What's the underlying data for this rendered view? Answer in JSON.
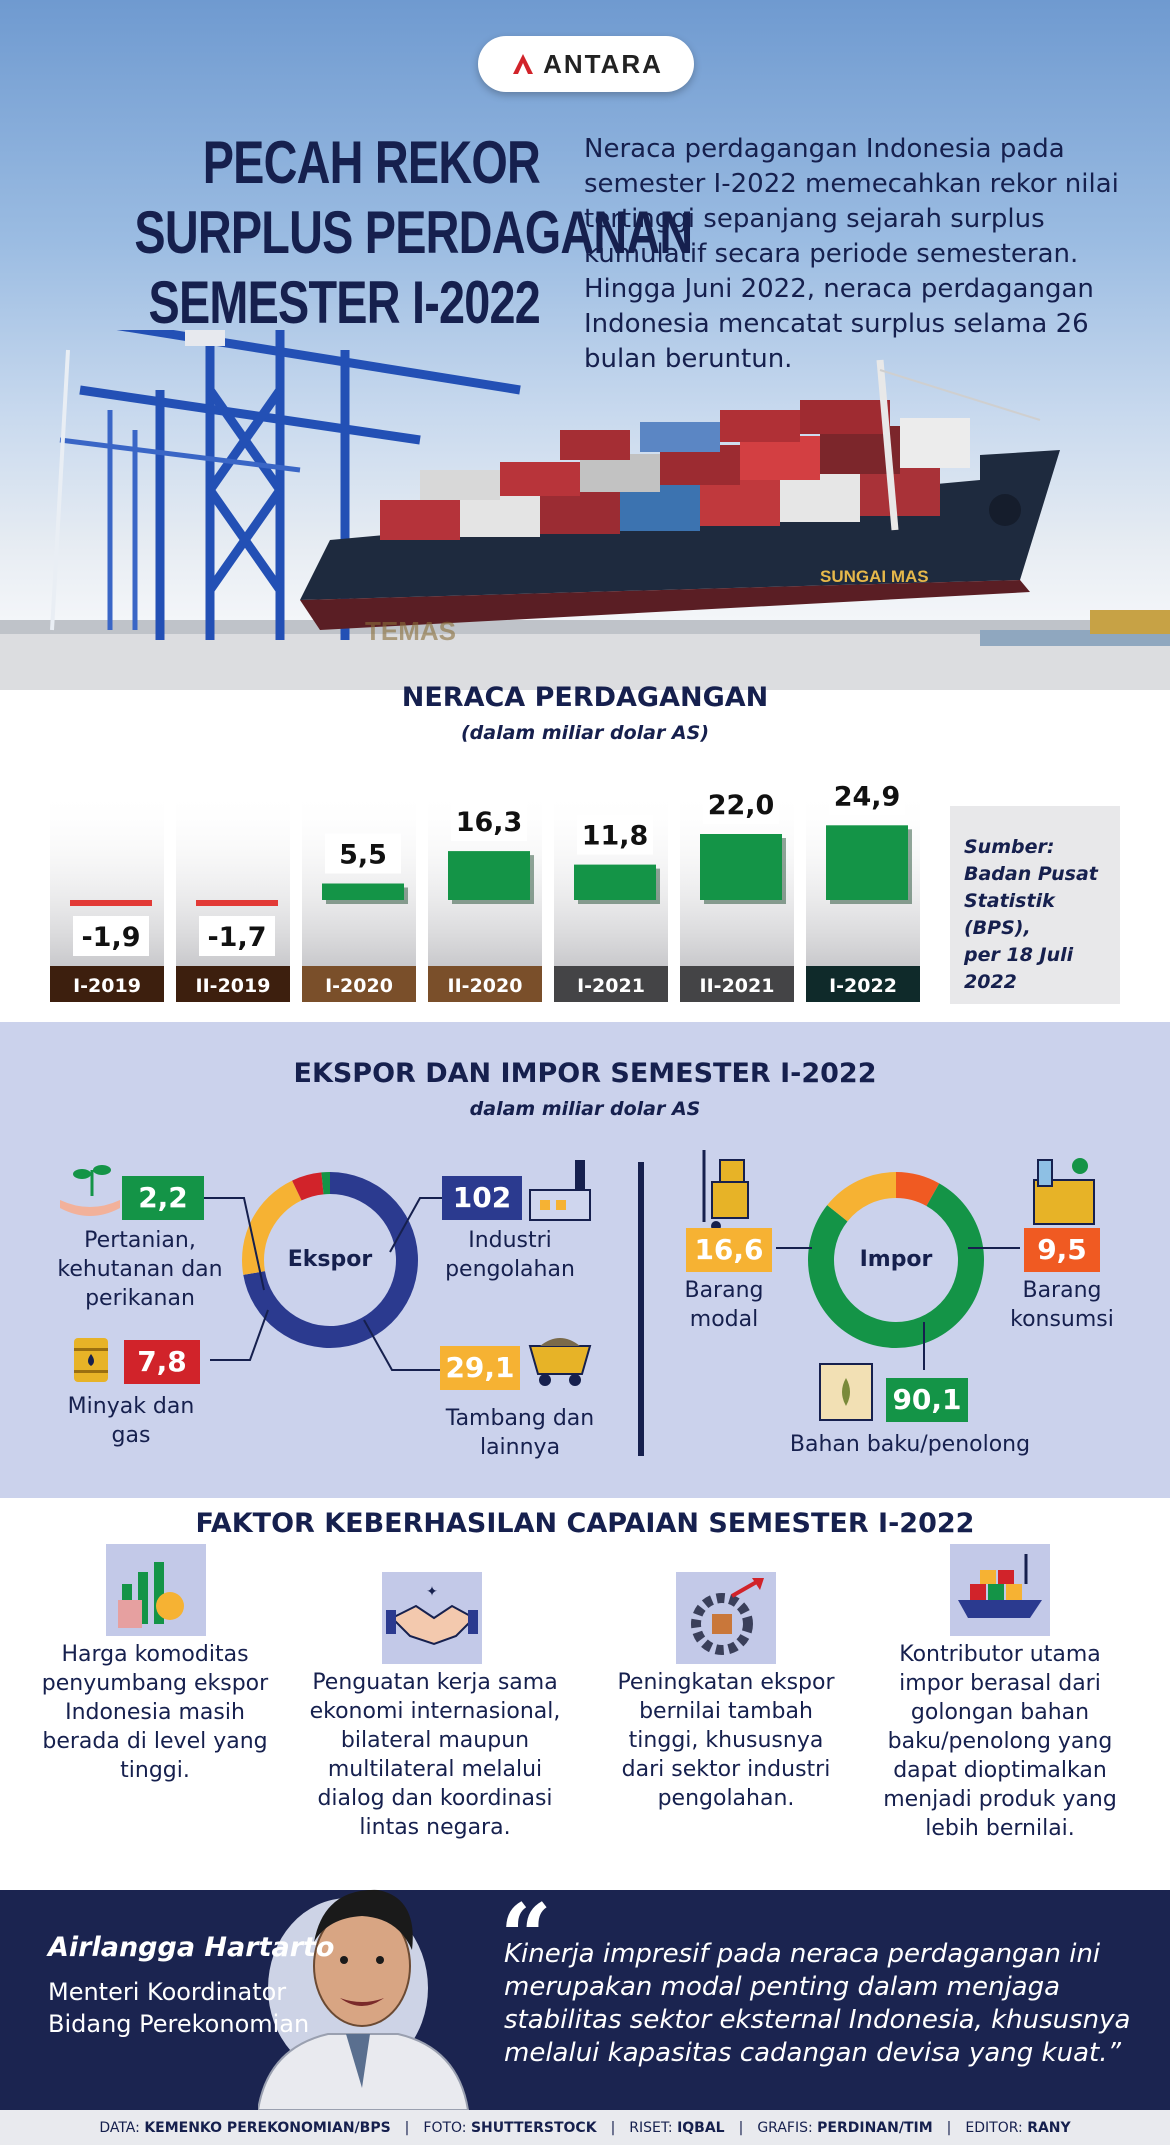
{
  "brand": {
    "logo_text": "ANTARA"
  },
  "hero": {
    "title_lines": [
      "PECAH REKOR",
      "SURPLUS PERDAGANAN",
      "SEMESTER I-2022"
    ],
    "description": "Neraca perdagangan Indonesia pada semester I-2022 memecahkan rekor nilai tertinggi sepanjang sejarah surplus kumulatif secara periode semesteran. Hingga Juni 2022, neraca perdagangan Indonesia mencatat surplus selama 26 bulan beruntun.",
    "ship_name": "SUNGAI MAS",
    "hull_text": "TEMAS"
  },
  "neraca": {
    "title": "NERACA PERDAGANGAN",
    "subtitle": "(dalam miliar dolar AS)",
    "source_lines": [
      "Sumber:",
      "Badan Pusat",
      "Statistik (BPS),",
      "per 18 Juli",
      "2022"
    ]
  },
  "chart_data": {
    "type": "bar",
    "title": "NERACA PERDAGANGAN",
    "subtitle": "(dalam miliar dolar AS)",
    "categories": [
      "I-2019",
      "II-2019",
      "I-2020",
      "II-2020",
      "I-2021",
      "II-2021",
      "I-2022"
    ],
    "values": [
      -1.9,
      -1.7,
      5.5,
      16.3,
      11.8,
      22.0,
      24.9
    ],
    "value_labels": [
      "-1,9",
      "-1,7",
      "5,5",
      "16,3",
      "11,8",
      "22,0",
      "24,9"
    ],
    "colors": {
      "positive": "#149447",
      "negative": "#e23a36"
    },
    "label_colors": [
      "#3d1f0e",
      "#3d1f0e",
      "#7a4f2a",
      "#7a4f2a",
      "#444446",
      "#444446",
      "#0f2a2a"
    ]
  },
  "ekspor_impor": {
    "title": "EKSPOR DAN IMPOR SEMESTER I-2022",
    "subtitle": "dalam miliar dolar AS",
    "ekspor": {
      "center_label": "Ekspor",
      "items": [
        {
          "label": "Industri pengolahan",
          "value": 102,
          "value_text": "102",
          "color": "#2b3a8f"
        },
        {
          "label": "Tambang dan lainnya",
          "value": 29.1,
          "value_text": "29,1",
          "color": "#f6b233"
        },
        {
          "label": "Minyak dan gas",
          "value": 7.8,
          "value_text": "7,8",
          "color": "#d1232a"
        },
        {
          "label": "Pertanian, kehutanan dan perikanan",
          "value": 2.2,
          "value_text": "2,2",
          "color": "#149447"
        }
      ]
    },
    "impor": {
      "center_label": "Impor",
      "items": [
        {
          "label": "Barang konsumsi",
          "value": 9.5,
          "value_text": "9,5",
          "color": "#f05a22"
        },
        {
          "label": "Bahan baku/penolong",
          "value": 90.1,
          "value_text": "90,1",
          "color": "#149447"
        },
        {
          "label": "Barang modal",
          "value": 16.6,
          "value_text": "16,6",
          "color": "#f6b233"
        }
      ]
    }
  },
  "faktor": {
    "title": "FAKTOR KEBERHASILAN CAPAIAN SEMESTER I-2022",
    "items": [
      {
        "text": "Harga komoditas penyumbang ekspor Indonesia masih berada di level yang tinggi."
      },
      {
        "text": "Penguatan kerja sama ekonomi internasional, bilateral maupun multilateral melalui dialog dan koordinasi lintas negara."
      },
      {
        "text": "Peningkatan ekspor bernilai tambah tinggi, khususnya dari sektor industri pengolahan."
      },
      {
        "text": "Kontributor utama impor berasal dari golongan bahan baku/penolong yang dapat dioptimalkan menjadi produk yang lebih bernilai."
      }
    ]
  },
  "quote": {
    "name": "Airlangga Hartarto",
    "role": "Menteri Koordinator Bidang Perekonomian",
    "mark": "“",
    "text": "Kinerja impresif pada neraca perdagangan ini merupakan modal penting dalam menjaga stabilitas sektor eksternal Indonesia, khususnya melalui kapasitas cadangan devisa yang kuat.”"
  },
  "footer": [
    {
      "key": "DATA:",
      "value": "KEMENKO PEREKONOMIAN/BPS"
    },
    {
      "key": "FOTO:",
      "value": "SHUTTERSTOCK"
    },
    {
      "key": "RISET:",
      "value": "IQBAL"
    },
    {
      "key": "GRAFIS:",
      "value": "PERDINAN/TIM"
    },
    {
      "key": "EDITOR:",
      "value": "RANY"
    }
  ]
}
